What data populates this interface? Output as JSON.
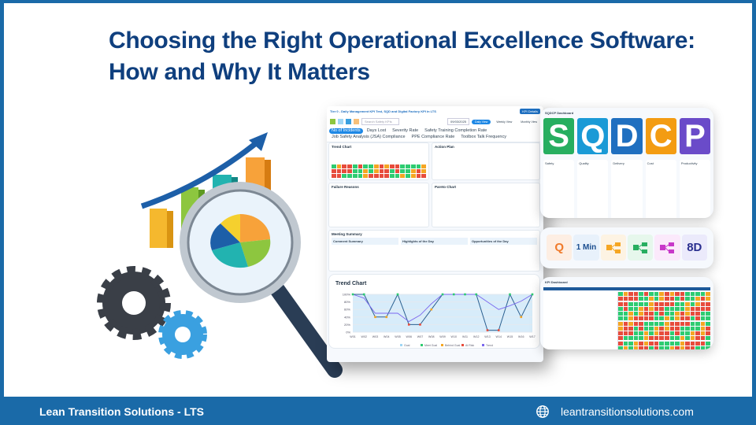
{
  "title": {
    "line1": "Choosing the Right Operational Excellence Software:",
    "line2": "How and Why It Matters"
  },
  "footer": {
    "company": "Lean Transition Solutions - LTS",
    "website": "leantransitionsolutions.com",
    "icon": "globe-icon"
  },
  "colors": {
    "title": "#0f3f7e",
    "footer": "#1a6aa8",
    "accent": "#1e88e5"
  },
  "main_dashboard": {
    "header": "Tier 0 - Daily Management KPI Test, SQD and Digital Factory KPI in LTS",
    "search_placeholder": "Search Safety KPIs",
    "date": "09/03/2025",
    "views": [
      "Daily View",
      "Weekly View",
      "Monthly View"
    ],
    "button": "KPI Details",
    "tabs": [
      "No of Incidents",
      "Days Lost",
      "Severity Rate",
      "Safety Training Completion Rate",
      "Job Safety Analysis (JSA) Compliance",
      "PPE Compliance Rate",
      "Toolbox Talk Frequency"
    ],
    "sections": [
      "Trend Chart",
      "Action Plan",
      "Pareto Chart",
      "Failure Reasons",
      "Meeting Summary"
    ],
    "summary_cols": [
      "Comment Summary",
      "Highlights of the Day",
      "Opportunities of the Day"
    ]
  },
  "trend_chart": {
    "title": "Trend Chart",
    "categories": [
      "W01",
      "W02",
      "W03",
      "W04",
      "W05",
      "W06",
      "W07",
      "W08",
      "W09",
      "W10",
      "W11",
      "W12",
      "W13",
      "W14",
      "W15",
      "W16",
      "W17"
    ],
    "yticks": [
      "100%",
      "80%",
      "60%",
      "40%",
      "20%",
      "0%"
    ],
    "values": [
      100,
      100,
      40,
      40,
      100,
      20,
      20,
      60,
      100,
      100,
      100,
      100,
      5,
      5,
      100,
      40,
      100
    ],
    "status": [
      "met",
      "met",
      "behind",
      "behind",
      "met",
      "risk",
      "risk",
      "behind",
      "met",
      "met",
      "met",
      "met",
      "risk",
      "risk",
      "met",
      "behind",
      "met"
    ],
    "trend": [
      100,
      90,
      50,
      50,
      50,
      28,
      45,
      75,
      100,
      100,
      100,
      100,
      80,
      60,
      70,
      82,
      100
    ],
    "legend": [
      "Goal",
      "Meet Goal",
      "Behind Goal",
      "At Risk",
      "Trend"
    ],
    "legend_colors": [
      "#9fd6f5",
      "#2ecc71",
      "#f5a623",
      "#e74c3c",
      "#7b68ee"
    ]
  },
  "sqdcp": {
    "title": "SQDCP Dashboard",
    "letters": [
      {
        "label": "Safety",
        "letter": "S",
        "color": "#27ae60"
      },
      {
        "label": "Quality",
        "letter": "Q",
        "color": "#1a9ad6"
      },
      {
        "label": "Delivery",
        "letter": "D",
        "color": "#1f6fc0"
      },
      {
        "label": "Cost",
        "letter": "C",
        "color": "#f39c12"
      },
      {
        "label": "Productivity",
        "letter": "P",
        "color": "#6a4bc9"
      }
    ]
  },
  "tools": [
    {
      "label": "Q",
      "color": "#f07b2c",
      "bg": "#fdeee3"
    },
    {
      "label": "1 Min",
      "color": "#1a4d8f",
      "bg": "#e8f1fb"
    },
    {
      "label": "fishbone",
      "color": "#f5a623",
      "bg": "#fdf3e3"
    },
    {
      "label": "tree",
      "color": "#27ae60",
      "bg": "#e6f7ec"
    },
    {
      "label": "process",
      "color": "#c837c9",
      "bg": "#fbe9fb"
    },
    {
      "label": "8D",
      "color": "#2a2f8f",
      "bg": "#ebeafb"
    }
  ],
  "kpi_dashboard": {
    "title": "KPI Dashboard"
  }
}
